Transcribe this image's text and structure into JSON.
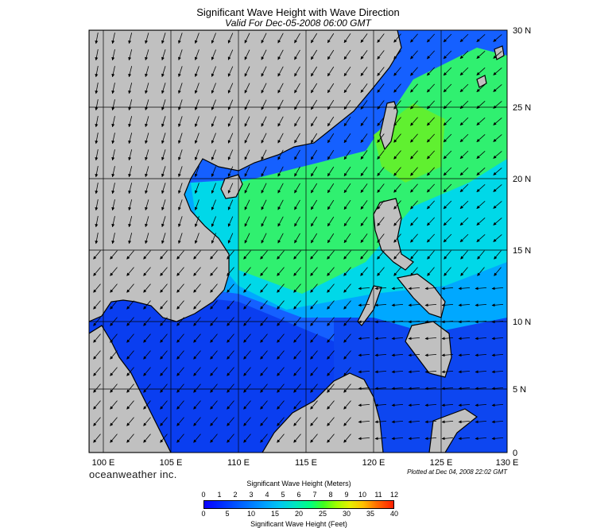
{
  "title": "Significant Wave Height with Wave Direction",
  "subtitle": "Valid For Dec-05-2008 06:00 GMT",
  "brand": "oceanweather inc.",
  "plotted": "Plotted at Dec 04, 2008 22:02 GMT",
  "lon_labels": [
    "100 E",
    "105 E",
    "110 E",
    "115 E",
    "120 E",
    "125 E",
    "130 E"
  ],
  "lat_labels": [
    "0",
    "5 N",
    "10 N",
    "15 N",
    "20 N",
    "25 N",
    "30 N"
  ],
  "colorbar": {
    "title_top": "Significant Wave Height (Meters)",
    "title_bottom": "Significant Wave Height (Feet)",
    "meters_ticks": [
      "0",
      "1",
      "2",
      "3",
      "4",
      "5",
      "6",
      "7",
      "8",
      "9",
      "10",
      "11",
      "12"
    ],
    "feet_ticks": [
      "0",
      "5",
      "10",
      "15",
      "20",
      "25",
      "30",
      "35",
      "40"
    ]
  },
  "colors": {
    "land": "#c0c0c0",
    "coast": "#000000",
    "grid": "#000000"
  },
  "map_extent": {
    "lon": [
      99,
      130
    ],
    "lat": [
      0,
      30
    ]
  }
}
